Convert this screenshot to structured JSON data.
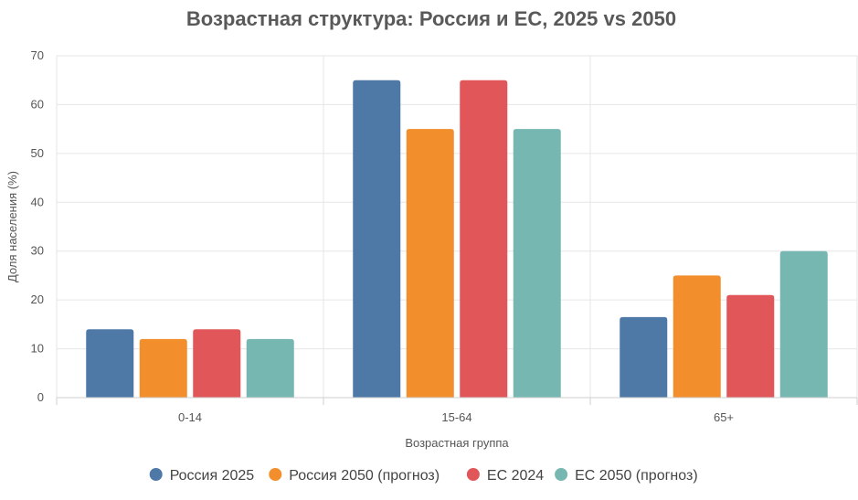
{
  "chart_data": {
    "type": "bar",
    "title": "Возрастная структура: Россия и ЕС, 2025 vs 2050",
    "xlabel": "Возрастная группа",
    "ylabel": "Доля населения (%)",
    "categories": [
      "0-14",
      "15-64",
      "65+"
    ],
    "ylim": [
      0,
      70
    ],
    "yticks": [
      0,
      10,
      20,
      30,
      40,
      50,
      60,
      70
    ],
    "grid": true,
    "legend_position": "bottom",
    "series": [
      {
        "name": "Россия 2025",
        "color": "#4e79a7",
        "values": [
          14,
          65,
          16.5
        ]
      },
      {
        "name": "Россия 2050 (прогноз)",
        "color": "#f28e2b",
        "values": [
          12,
          55,
          25
        ]
      },
      {
        "name": "ЕС 2024",
        "color": "#e15759",
        "values": [
          14,
          65,
          21
        ]
      },
      {
        "name": "ЕС 2050 (прогноз)",
        "color": "#76b7b2",
        "values": [
          12,
          55,
          30
        ]
      }
    ]
  }
}
